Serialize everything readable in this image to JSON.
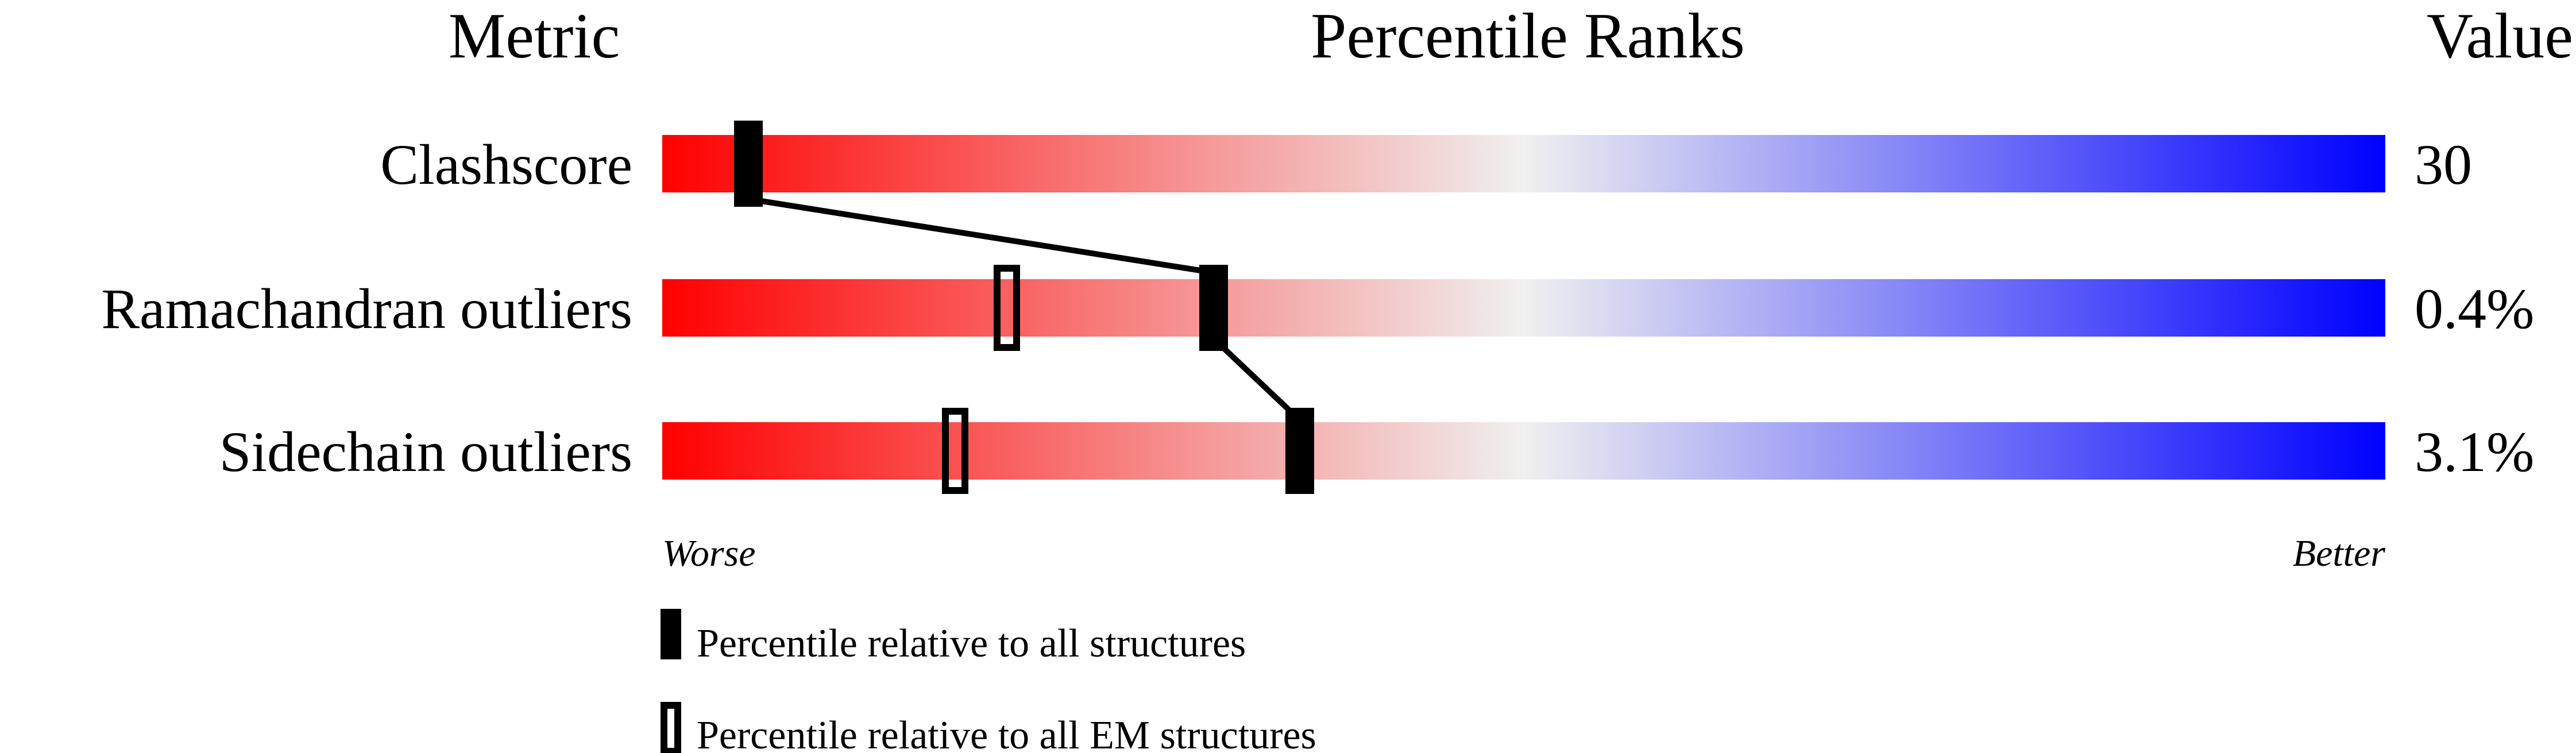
{
  "chart_data": {
    "type": "bar",
    "title": "Percentile Ranks",
    "metric_header": "Metric",
    "value_header": "Value",
    "xlim": [
      0,
      100
    ],
    "worse_label": "Worse",
    "better_label": "Better",
    "gradient_colors": [
      "#ff0000",
      "#f0f0f0",
      "#0000ff"
    ],
    "categories": [
      "Clashscore",
      "Ramachandran outliers",
      "Sidechain outliers"
    ],
    "values_text": [
      "30",
      "0.4%",
      "3.1%"
    ],
    "series": [
      {
        "name": "Percentile relative to all structures",
        "style": "filled",
        "values": [
          5,
          32,
          37
        ]
      },
      {
        "name": "Percentile relative to all EM structures",
        "style": "outline",
        "values": [
          5,
          20,
          17
        ]
      }
    ],
    "legend": [
      {
        "label": "Percentile relative to all structures",
        "style": "filled"
      },
      {
        "label": "Percentile relative to all EM structures",
        "style": "outline"
      }
    ]
  }
}
